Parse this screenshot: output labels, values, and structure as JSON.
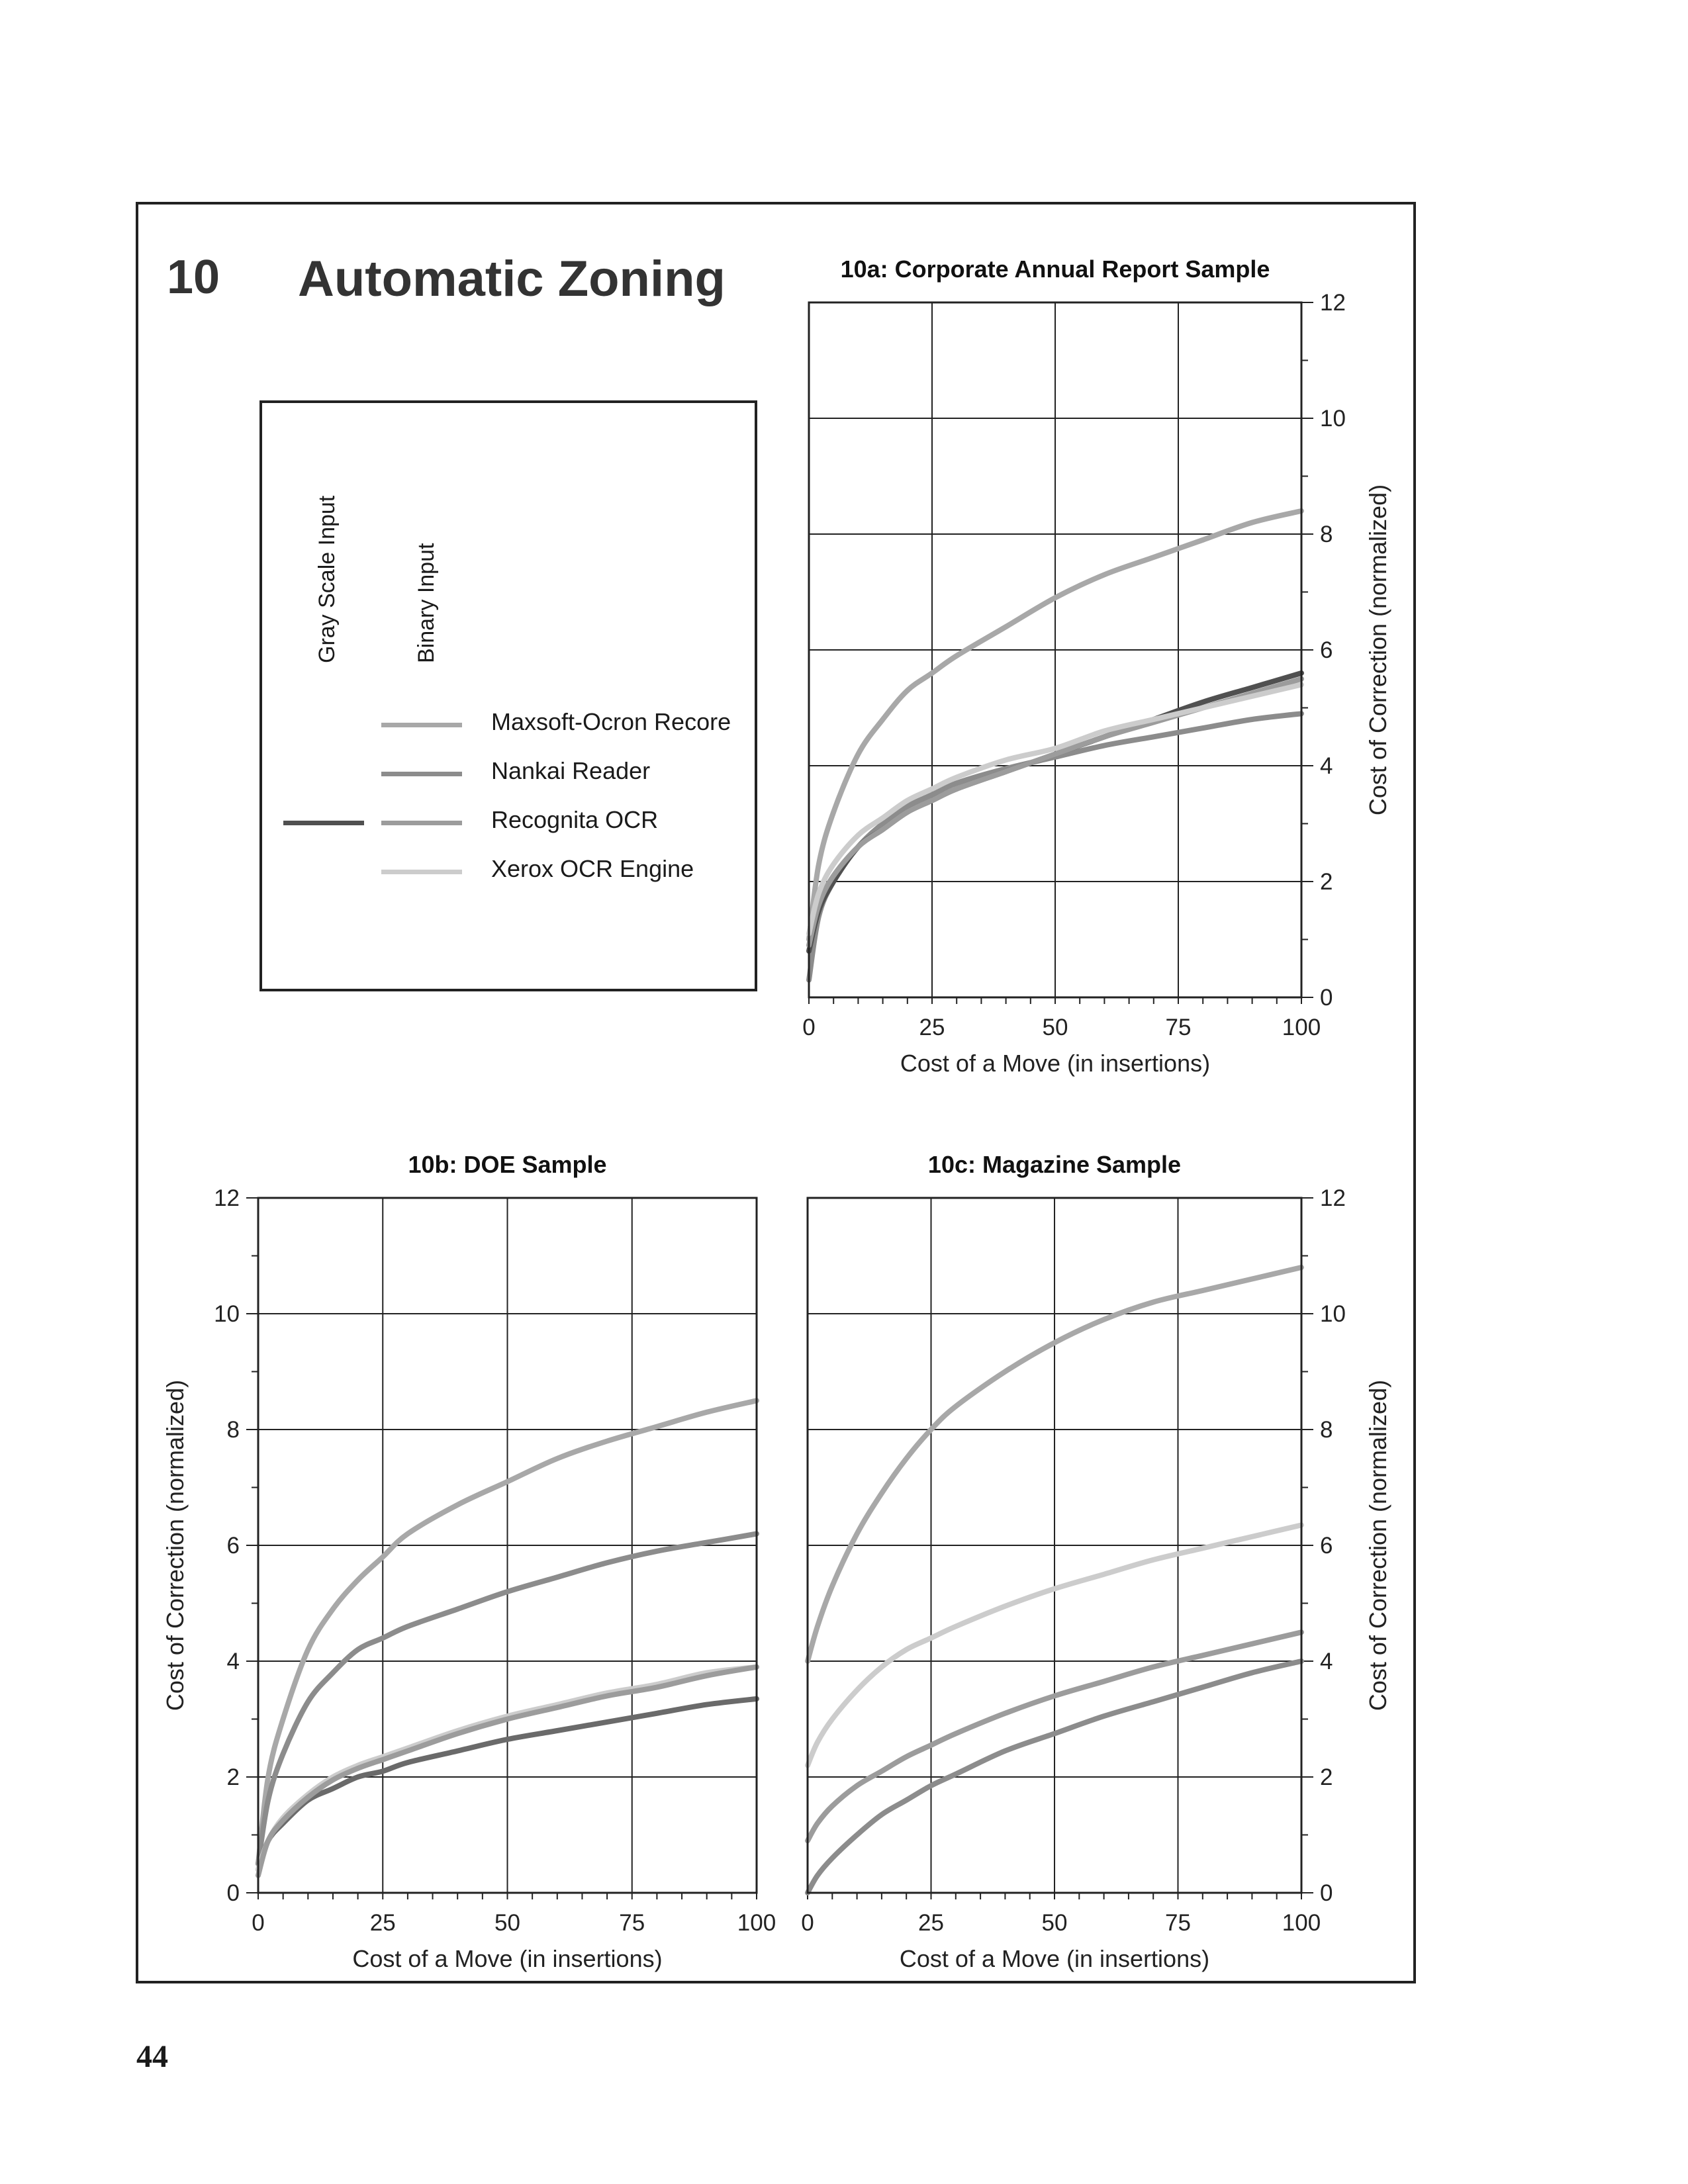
{
  "section": {
    "number": "10",
    "title": "Automatic Zoning"
  },
  "page_number": "44",
  "legend": {
    "column_headers": [
      "Gray Scale Input",
      "Binary Input"
    ],
    "entries": [
      {
        "label": "Maxsoft-Ocron Recore",
        "color": "#a8a8a8",
        "has_gray": false
      },
      {
        "label": "Nankai Reader",
        "color": "#8c8c8c",
        "has_gray": false
      },
      {
        "label": "Recognita OCR",
        "color": "#9c9c9c",
        "has_gray": true,
        "gray_color": "#505050"
      },
      {
        "label": "Xerox OCR Engine",
        "color": "#cccccc",
        "has_gray": false
      }
    ]
  },
  "chart_data": [
    {
      "id": "10a",
      "type": "line",
      "title": "10a: Corporate Annual Report Sample",
      "xlabel": "Cost of a Move (in insertions)",
      "ylabel": "Cost of Correction (normalized)",
      "y_axis_side": "right",
      "xlim": [
        0,
        100
      ],
      "ylim": [
        0,
        12
      ],
      "xticks": [
        0,
        25,
        50,
        75,
        100
      ],
      "yticks": [
        0,
        2,
        4,
        6,
        8,
        10,
        12
      ],
      "grid": true,
      "x": [
        0,
        2,
        5,
        10,
        15,
        20,
        25,
        30,
        40,
        50,
        60,
        70,
        80,
        90,
        100
      ],
      "series": [
        {
          "name": "Maxsoft-Ocron Recore",
          "values": [
            1.0,
            2.3,
            3.2,
            4.2,
            4.8,
            5.3,
            5.6,
            5.9,
            6.4,
            6.9,
            7.3,
            7.6,
            7.9,
            8.2,
            8.4
          ]
        },
        {
          "name": "Nankai Reader",
          "values": [
            0.3,
            1.4,
            2.0,
            2.6,
            3.0,
            3.3,
            3.5,
            3.7,
            3.95,
            4.15,
            4.35,
            4.5,
            4.65,
            4.8,
            4.9
          ]
        },
        {
          "name": "Recognita OCR",
          "values": [
            0.8,
            1.5,
            2.0,
            2.6,
            2.9,
            3.2,
            3.4,
            3.6,
            3.9,
            4.2,
            4.5,
            4.8,
            5.1,
            5.35,
            5.6
          ]
        },
        {
          "name": "Recognita OCR",
          "values": [
            0.9,
            1.6,
            2.1,
            2.6,
            2.9,
            3.2,
            3.4,
            3.6,
            3.9,
            4.2,
            4.5,
            4.75,
            5.0,
            5.25,
            5.5
          ]
        },
        {
          "name": "Xerox OCR Engine",
          "values": [
            1.1,
            1.8,
            2.3,
            2.8,
            3.1,
            3.4,
            3.6,
            3.8,
            4.1,
            4.3,
            4.6,
            4.8,
            5.0,
            5.2,
            5.4
          ]
        }
      ]
    },
    {
      "id": "10b",
      "type": "line",
      "title": "10b: DOE Sample",
      "xlabel": "Cost of a Move (in insertions)",
      "ylabel": "Cost of Correction (normalized)",
      "y_axis_side": "left",
      "xlim": [
        0,
        100
      ],
      "ylim": [
        0,
        12
      ],
      "xticks": [
        0,
        25,
        50,
        75,
        100
      ],
      "yticks": [
        0,
        2,
        4,
        6,
        8,
        10,
        12
      ],
      "grid": true,
      "x": [
        0,
        2,
        5,
        10,
        15,
        20,
        25,
        30,
        40,
        50,
        60,
        70,
        80,
        90,
        100
      ],
      "series": [
        {
          "name": "Maxsoft-Ocron Recore",
          "values": [
            0.5,
            2.0,
            3.0,
            4.2,
            4.9,
            5.4,
            5.8,
            6.2,
            6.7,
            7.1,
            7.5,
            7.8,
            8.05,
            8.3,
            8.5
          ]
        },
        {
          "name": "Nankai Reader",
          "values": [
            0.5,
            1.6,
            2.4,
            3.3,
            3.8,
            4.2,
            4.4,
            4.6,
            4.9,
            5.2,
            5.45,
            5.7,
            5.9,
            6.05,
            6.2
          ]
        },
        {
          "name": "Recognita OCR",
          "values": [
            0.4,
            0.9,
            1.2,
            1.6,
            1.8,
            2.0,
            2.1,
            2.25,
            2.45,
            2.65,
            2.8,
            2.95,
            3.1,
            3.25,
            3.35
          ]
        },
        {
          "name": "Xerox OCR Engine",
          "values": [
            0.4,
            0.9,
            1.3,
            1.7,
            2.0,
            2.2,
            2.35,
            2.5,
            2.8,
            3.05,
            3.25,
            3.45,
            3.6,
            3.8,
            3.9
          ]
        },
        {
          "name": "Recognita OCR",
          "values": [
            0.3,
            0.9,
            1.25,
            1.65,
            1.95,
            2.15,
            2.3,
            2.45,
            2.75,
            3.0,
            3.2,
            3.4,
            3.55,
            3.75,
            3.9
          ]
        }
      ]
    },
    {
      "id": "10c",
      "type": "line",
      "title": "10c: Magazine Sample",
      "xlabel": "Cost of a Move (in insertions)",
      "ylabel": "Cost of Correction (normalized)",
      "y_axis_side": "right",
      "xlim": [
        0,
        100
      ],
      "ylim": [
        0,
        12
      ],
      "xticks": [
        0,
        25,
        50,
        75,
        100
      ],
      "yticks": [
        0,
        2,
        4,
        6,
        8,
        10,
        12
      ],
      "grid": true,
      "x": [
        0,
        2,
        5,
        10,
        15,
        20,
        25,
        30,
        40,
        50,
        60,
        70,
        80,
        90,
        100
      ],
      "series": [
        {
          "name": "Maxsoft-Ocron Recore",
          "values": [
            4.0,
            4.6,
            5.3,
            6.2,
            6.9,
            7.5,
            8.0,
            8.4,
            9.0,
            9.5,
            9.9,
            10.2,
            10.4,
            10.6,
            10.8
          ]
        },
        {
          "name": "Xerox OCR Engine",
          "values": [
            2.2,
            2.6,
            3.0,
            3.5,
            3.9,
            4.2,
            4.4,
            4.6,
            4.95,
            5.25,
            5.5,
            5.75,
            5.95,
            6.15,
            6.35
          ]
        },
        {
          "name": "Recognita OCR",
          "values": [
            0.9,
            1.2,
            1.5,
            1.85,
            2.1,
            2.35,
            2.55,
            2.75,
            3.1,
            3.4,
            3.65,
            3.9,
            4.1,
            4.3,
            4.5
          ]
        },
        {
          "name": "Nankai Reader",
          "values": [
            0.0,
            0.3,
            0.6,
            1.0,
            1.35,
            1.6,
            1.85,
            2.05,
            2.45,
            2.75,
            3.05,
            3.3,
            3.55,
            3.8,
            4.0
          ]
        }
      ]
    }
  ]
}
